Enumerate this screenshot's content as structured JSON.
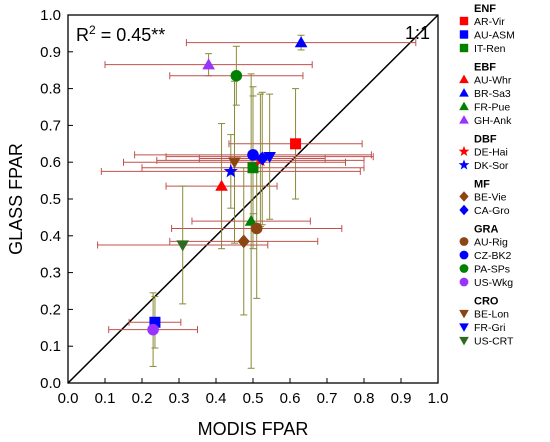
{
  "chart_data": {
    "type": "scatter",
    "xlabel": "MODIS FPAR",
    "ylabel": "GLASS FPAR",
    "xlim": [
      0,
      1
    ],
    "ylim": [
      0,
      1
    ],
    "xticks": [
      "0.0",
      "0.1",
      "0.2",
      "0.3",
      "0.4",
      "0.5",
      "0.6",
      "0.7",
      "0.8",
      "0.9",
      "1.0"
    ],
    "yticks": [
      "0.0",
      "0.1",
      "0.2",
      "0.3",
      "0.4",
      "0.5",
      "0.6",
      "0.7",
      "0.8",
      "0.9",
      "1.0"
    ],
    "annotation_r2": "R",
    "annotation_r2_sup": "2",
    "annotation_r2_value": " = 0.45**",
    "one_to_one_label": "1:1",
    "error_bar_colors": {
      "x": "#c0504d",
      "y": "#8a8a3a"
    },
    "groups": [
      {
        "name": "ENF",
        "sites": [
          {
            "name": "AR-Vir",
            "marker": "square",
            "color": "#ff0000",
            "x": 0.615,
            "y": 0.65,
            "x_err": 0.18,
            "y_err": 0.15
          },
          {
            "name": "AU-ASM",
            "marker": "square",
            "color": "#0000ff",
            "x": 0.235,
            "y": 0.165,
            "x_err": 0.07,
            "y_err": 0.07
          },
          {
            "name": "IT-Ren",
            "marker": "square",
            "color": "#008000",
            "x": 0.5,
            "y": 0.585,
            "x_err": 0.3,
            "y_err": 0.22
          }
        ]
      },
      {
        "name": "EBF",
        "sites": [
          {
            "name": "AU-Whr",
            "marker": "triangle",
            "color": "#ff0000",
            "x": 0.415,
            "y": 0.535,
            "x_err": 0.15,
            "y_err": 0.17
          },
          {
            "name": "BR-Sa3",
            "marker": "triangle",
            "color": "#0000ff",
            "x": 0.63,
            "y": 0.925,
            "x_err": 0.31,
            "y_err": 0.02
          },
          {
            "name": "FR-Pue",
            "marker": "triangle",
            "color": "#008000",
            "x": 0.495,
            "y": 0.44,
            "x_err": 0.16,
            "y_err": 0.4
          },
          {
            "name": "GH-Ank",
            "marker": "triangle",
            "color": "#9933ff",
            "x": 0.38,
            "y": 0.865,
            "x_err": 0.28,
            "y_err": 0.03
          }
        ]
      },
      {
        "name": "DBF",
        "sites": [
          {
            "name": "DE-Hai",
            "marker": "star",
            "color": "#ff0000",
            "x": 0.52,
            "y": 0.605,
            "x_err": 0.28,
            "y_err": 0.18
          },
          {
            "name": "DK-Sor",
            "marker": "star",
            "color": "#0000ff",
            "x": 0.44,
            "y": 0.575,
            "x_err": 0.35,
            "y_err": 0.1
          }
        ]
      },
      {
        "name": "MF",
        "sites": [
          {
            "name": "BE-Vie",
            "marker": "diamond",
            "color": "#8b4513",
            "x": 0.475,
            "y": 0.385,
            "x_err": 0.2,
            "y_err": 0.2
          },
          {
            "name": "CA-Gro",
            "marker": "diamond",
            "color": "#0000ff",
            "x": 0.525,
            "y": 0.61,
            "x_err": 0.17,
            "y_err": 0.18
          }
        ]
      },
      {
        "name": "GRA",
        "sites": [
          {
            "name": "AU-Rig",
            "marker": "circle",
            "color": "#8b4513",
            "x": 0.51,
            "y": 0.42,
            "x_err": 0.23,
            "y_err": 0.19
          },
          {
            "name": "CZ-BK2",
            "marker": "circle",
            "color": "#0000ff",
            "x": 0.5,
            "y": 0.62,
            "x_err": 0.32,
            "y_err": 0.16
          },
          {
            "name": "PA-SPs",
            "marker": "circle",
            "color": "#008000",
            "x": 0.455,
            "y": 0.835,
            "x_err": 0.18,
            "y_err": 0.08
          },
          {
            "name": "US-Wkg",
            "marker": "circle",
            "color": "#9933ff",
            "x": 0.23,
            "y": 0.145,
            "x_err": 0.12,
            "y_err": 0.1
          }
        ]
      },
      {
        "name": "CRO",
        "sites": [
          {
            "name": "BE-Lon",
            "marker": "tri-down",
            "color": "#8b4513",
            "x": 0.45,
            "y": 0.6,
            "x_err": 0.3,
            "y_err": 0.22
          },
          {
            "name": "FR-Gri",
            "marker": "tri-down",
            "color": "#0000ff",
            "x": 0.545,
            "y": 0.615,
            "x_err": 0.28,
            "y_err": 0.17
          },
          {
            "name": "US-CRT",
            "marker": "tri-down",
            "color": "#2e6b1e",
            "x": 0.31,
            "y": 0.375,
            "x_err": 0.23,
            "y_err": 0.16
          }
        ]
      }
    ]
  }
}
